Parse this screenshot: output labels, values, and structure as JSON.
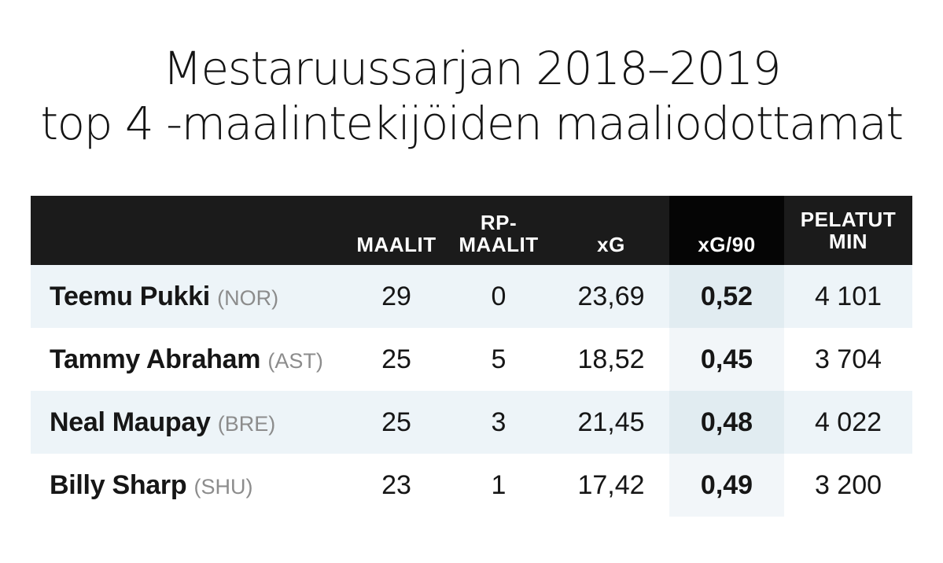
{
  "title": {
    "line1": "Mestaruussarjan 2018–2019",
    "line2": "top 4 -maalintekijöiden maaliodottamat"
  },
  "chart_data": {
    "type": "table",
    "columns": [
      {
        "key": "player",
        "label": ""
      },
      {
        "key": "goals",
        "label": "MAALIT"
      },
      {
        "key": "pen_goals",
        "label_line1": "RP-",
        "label_line2": "MAALIT"
      },
      {
        "key": "xg",
        "label": "xG"
      },
      {
        "key": "xg90",
        "label": "xG/90"
      },
      {
        "key": "minutes",
        "label_line1": "PELATUT",
        "label_line2": "MIN"
      }
    ],
    "rows": [
      {
        "player": "Teemu Pukki",
        "team": "(NOR)",
        "goals": "29",
        "pen_goals": "0",
        "xg": "23,69",
        "xg90": "0,52",
        "minutes": "4 101"
      },
      {
        "player": "Tammy Abraham",
        "team": "(AST)",
        "goals": "25",
        "pen_goals": "5",
        "xg": "18,52",
        "xg90": "0,45",
        "minutes": "3 704"
      },
      {
        "player": "Neal Maupay",
        "team": "(BRE)",
        "goals": "25",
        "pen_goals": "3",
        "xg": "21,45",
        "xg90": "0,48",
        "minutes": "4 022"
      },
      {
        "player": "Billy Sharp",
        "team": "(SHU)",
        "goals": "23",
        "pen_goals": "1",
        "xg": "17,42",
        "xg90": "0,49",
        "minutes": "3 200"
      }
    ]
  },
  "colors": {
    "header_bg": "#1b1b1b",
    "header_highlight_bg": "#050505",
    "row_shade": "#edf4f8",
    "highlight_column_shade": "#e1ecf1",
    "team_text": "#8c8c8c"
  }
}
